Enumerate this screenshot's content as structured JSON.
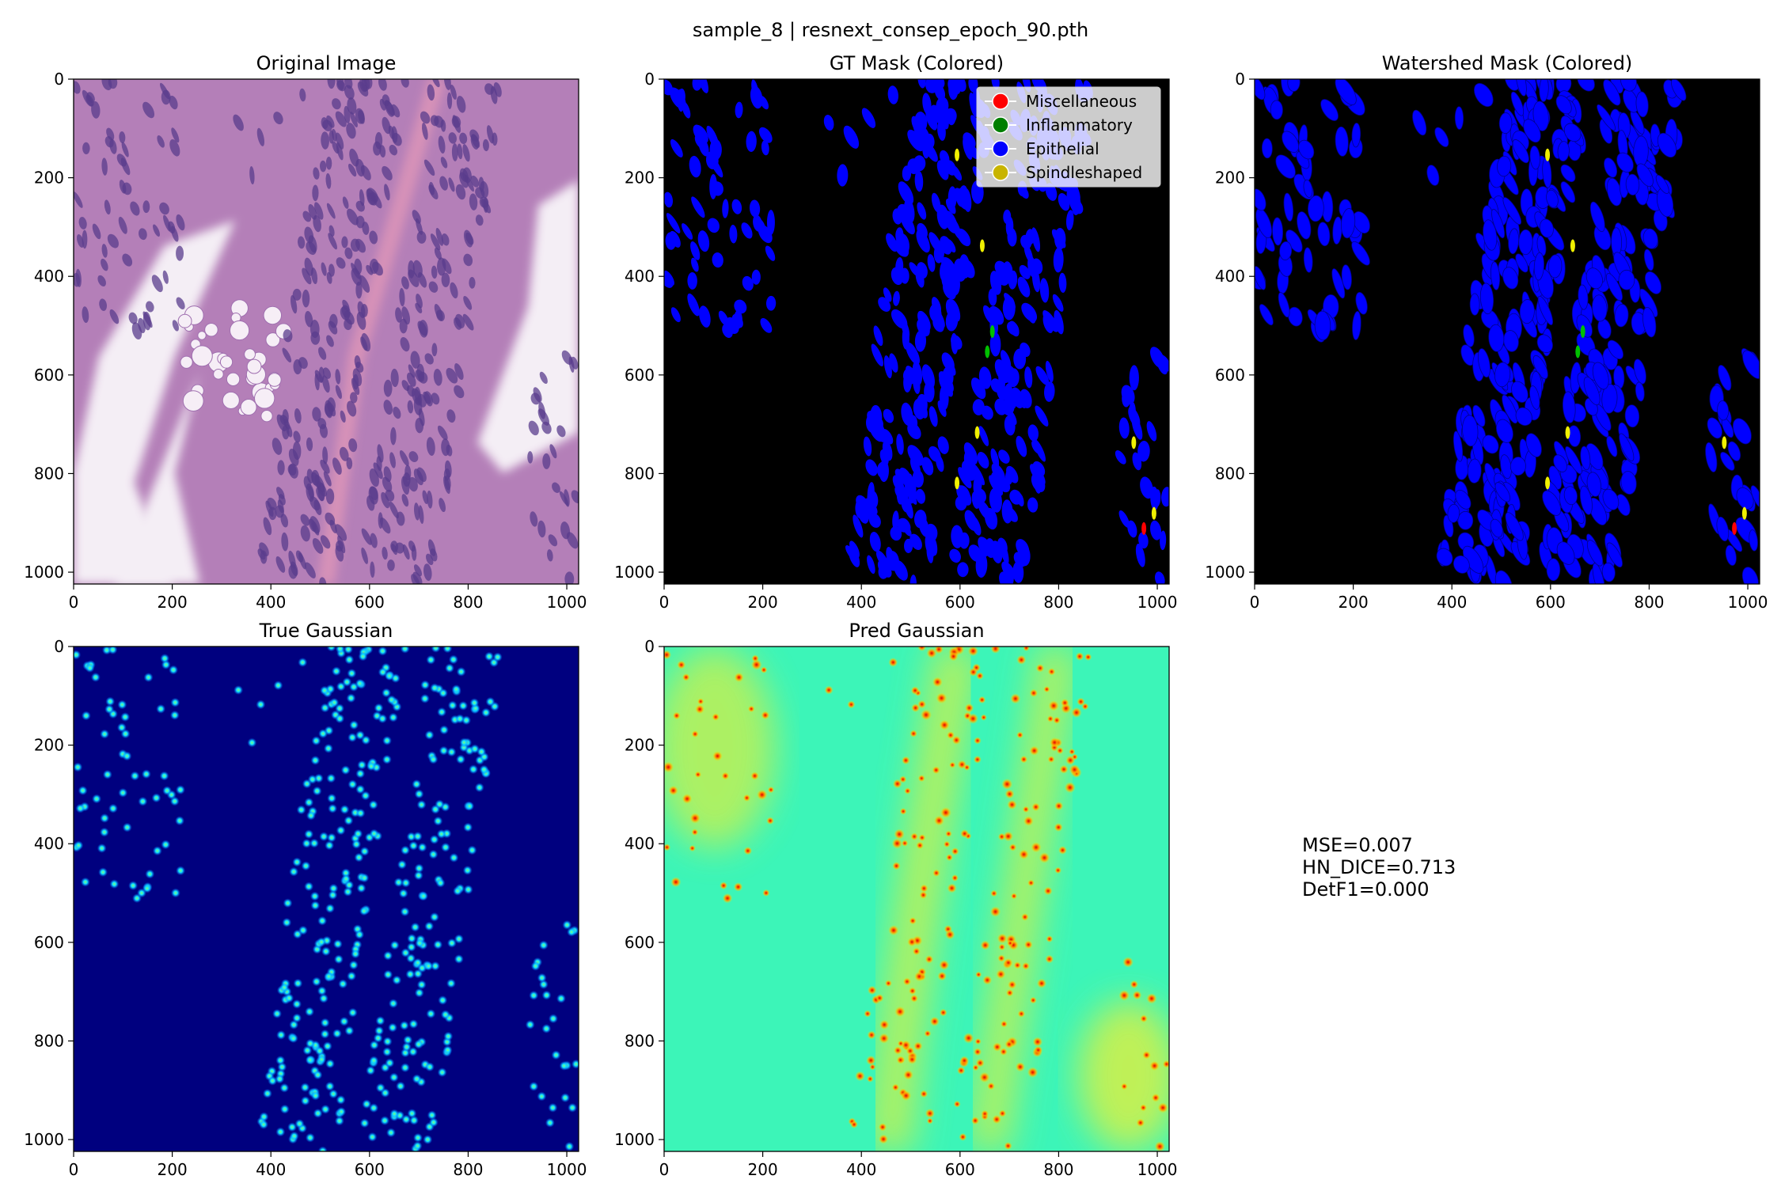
{
  "suptitle": "sample_8 | resnext_consep_epoch_90.pth",
  "metrics": {
    "mse": "MSE=0.007",
    "hn_dice": "HN_DICE=0.713",
    "detf1": "DetF1=0.000"
  },
  "colors": {
    "background_black": "#000000",
    "epithelial": "#0000ff",
    "inflammatory": "#00c000",
    "miscellaneous": "#ff0000",
    "spindleshaped": "#f0f000",
    "true_gaussian_bg": "#00007f",
    "pred_gaussian_bg": "#3cf5b8",
    "he_tissue": "#b47fb8",
    "he_lumen": "#f4eef5"
  },
  "chart_data": [
    {
      "type": "heatmap",
      "title": "Original Image",
      "xlabel": "",
      "ylabel": "",
      "xlim": [
        0,
        1024
      ],
      "ylim": [
        1024,
        0
      ],
      "xticks": [
        0,
        200,
        400,
        600,
        800,
        1000
      ],
      "yticks": [
        0,
        200,
        400,
        600,
        800,
        1000
      ],
      "content": "H&E histology image"
    },
    {
      "type": "heatmap",
      "title": "GT Mask (Colored)",
      "xlim": [
        0,
        1024
      ],
      "ylim": [
        1024,
        0
      ],
      "xticks": [
        0,
        200,
        400,
        600,
        800,
        1000
      ],
      "yticks": [
        0,
        200,
        400,
        600,
        800,
        1000
      ],
      "legend": {
        "placement": "top-right",
        "entries": [
          {
            "label": "Miscellaneous",
            "color": "#ff0000"
          },
          {
            "label": "Inflammatory",
            "color": "#007f00"
          },
          {
            "label": "Epithelial",
            "color": "#0000ff"
          },
          {
            "label": "Spindleshaped",
            "color": "#c8b400"
          }
        ]
      }
    },
    {
      "type": "heatmap",
      "title": "Watershed Mask (Colored)",
      "xlim": [
        0,
        1024
      ],
      "ylim": [
        1024,
        0
      ],
      "xticks": [
        0,
        200,
        400,
        600,
        800,
        1000
      ],
      "yticks": [
        0,
        200,
        400,
        600,
        800,
        1000
      ]
    },
    {
      "type": "heatmap",
      "title": "True Gaussian",
      "xlim": [
        0,
        1024
      ],
      "ylim": [
        1024,
        0
      ],
      "xticks": [
        0,
        200,
        400,
        600,
        800,
        1000
      ],
      "yticks": [
        0,
        200,
        400,
        600,
        800,
        1000
      ],
      "colormap": "jet"
    },
    {
      "type": "heatmap",
      "title": "Pred Gaussian",
      "xlim": [
        0,
        1024
      ],
      "ylim": [
        1024,
        0
      ],
      "xticks": [
        0,
        200,
        400,
        600,
        800,
        1000
      ],
      "yticks": [
        0,
        200,
        400,
        600,
        800,
        1000
      ],
      "colormap": "jet"
    }
  ]
}
